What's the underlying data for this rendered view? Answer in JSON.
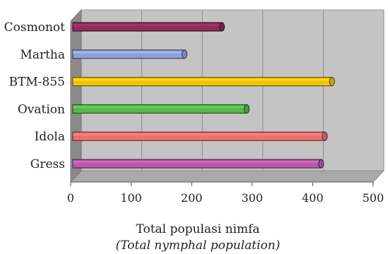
{
  "chart_data": {
    "type": "bar",
    "orientation": "horizontal",
    "categories": [
      "Cosmonot",
      "Martha",
      "BTM-855",
      "Ovation",
      "Idola",
      "Gress"
    ],
    "values": [
      250,
      188,
      432,
      291,
      420,
      414
    ],
    "colors": [
      "#8e2c5c",
      "#8fa0d8",
      "#f0c20e",
      "#56b84a",
      "#ec7070",
      "#b85aac"
    ],
    "xlim": [
      0,
      500
    ],
    "xticks": [
      "0",
      "100",
      "200",
      "300",
      "400",
      "500"
    ],
    "xlabel": "Total populasi nimfa",
    "xlabel_translation": "(Total nymphal population)",
    "grid": true,
    "style": "3d",
    "plot_background": "#c4c4c4"
  }
}
